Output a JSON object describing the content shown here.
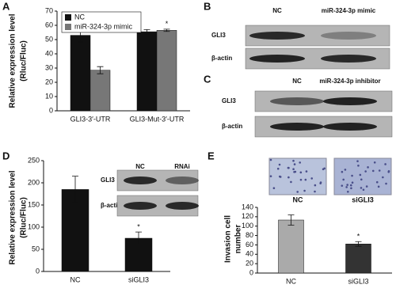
{
  "panel_labels": [
    "A",
    "B",
    "C",
    "D",
    "E"
  ],
  "chart_data": [
    {
      "type": "bar",
      "y_label": [
        "Relative expression level",
        "(Rluc/Fluc)"
      ],
      "categories": [
        "GLI3-3′-UTR",
        "GLI3-Mut-3′-UTR"
      ],
      "series": [
        {
          "name": "NC",
          "color": "#111111",
          "values": [
            53,
            55.5
          ],
          "errors": [
            4.5,
            1.5
          ]
        },
        {
          "name": "miR-324-3p mimic",
          "color": "#777777",
          "values": [
            28.5,
            56.5
          ],
          "errors": [
            2.5,
            0.8
          ]
        }
      ],
      "ylim": [
        0,
        70
      ],
      "yticks": [
        0,
        10,
        20,
        30,
        40,
        50,
        60,
        70
      ],
      "annotations": [
        "*"
      ]
    },
    {
      "type": "bar",
      "y_label": [
        "Relative expression level",
        "(Rluc/Fluc)"
      ],
      "categories": [
        "NC",
        "siGLI3"
      ],
      "values": [
        185,
        75
      ],
      "errors": [
        30,
        14
      ],
      "color": "#111111",
      "ylim": [
        0,
        250
      ],
      "yticks": [
        0,
        50,
        100,
        150,
        200,
        250
      ],
      "annotations": [
        "*"
      ]
    },
    {
      "type": "bar",
      "y_label": [
        "Invasion cell",
        "number"
      ],
      "categories": [
        "NC",
        "siGLI3"
      ],
      "values": [
        113,
        62
      ],
      "errors": [
        11,
        5
      ],
      "colors": [
        "#aaaaaa",
        "#333333"
      ],
      "ylim": [
        0,
        140
      ],
      "yticks": [
        0,
        20,
        40,
        60,
        80,
        100,
        120,
        140
      ],
      "annotations": [
        "*"
      ],
      "image_labels": [
        "NC",
        "siGLI3"
      ]
    }
  ],
  "blots": [
    {
      "columns": [
        "NC",
        "miR-324-3p mimic"
      ],
      "rows": [
        "GLI3",
        "β-actin"
      ]
    },
    {
      "columns": [
        "NC",
        "miR-324-3p inhibitor"
      ],
      "rows": [
        "GLI3",
        "β-actin"
      ]
    },
    {
      "columns": [
        "NC",
        "RNAi"
      ],
      "rows": [
        "GLI3",
        "β-actin"
      ]
    }
  ]
}
